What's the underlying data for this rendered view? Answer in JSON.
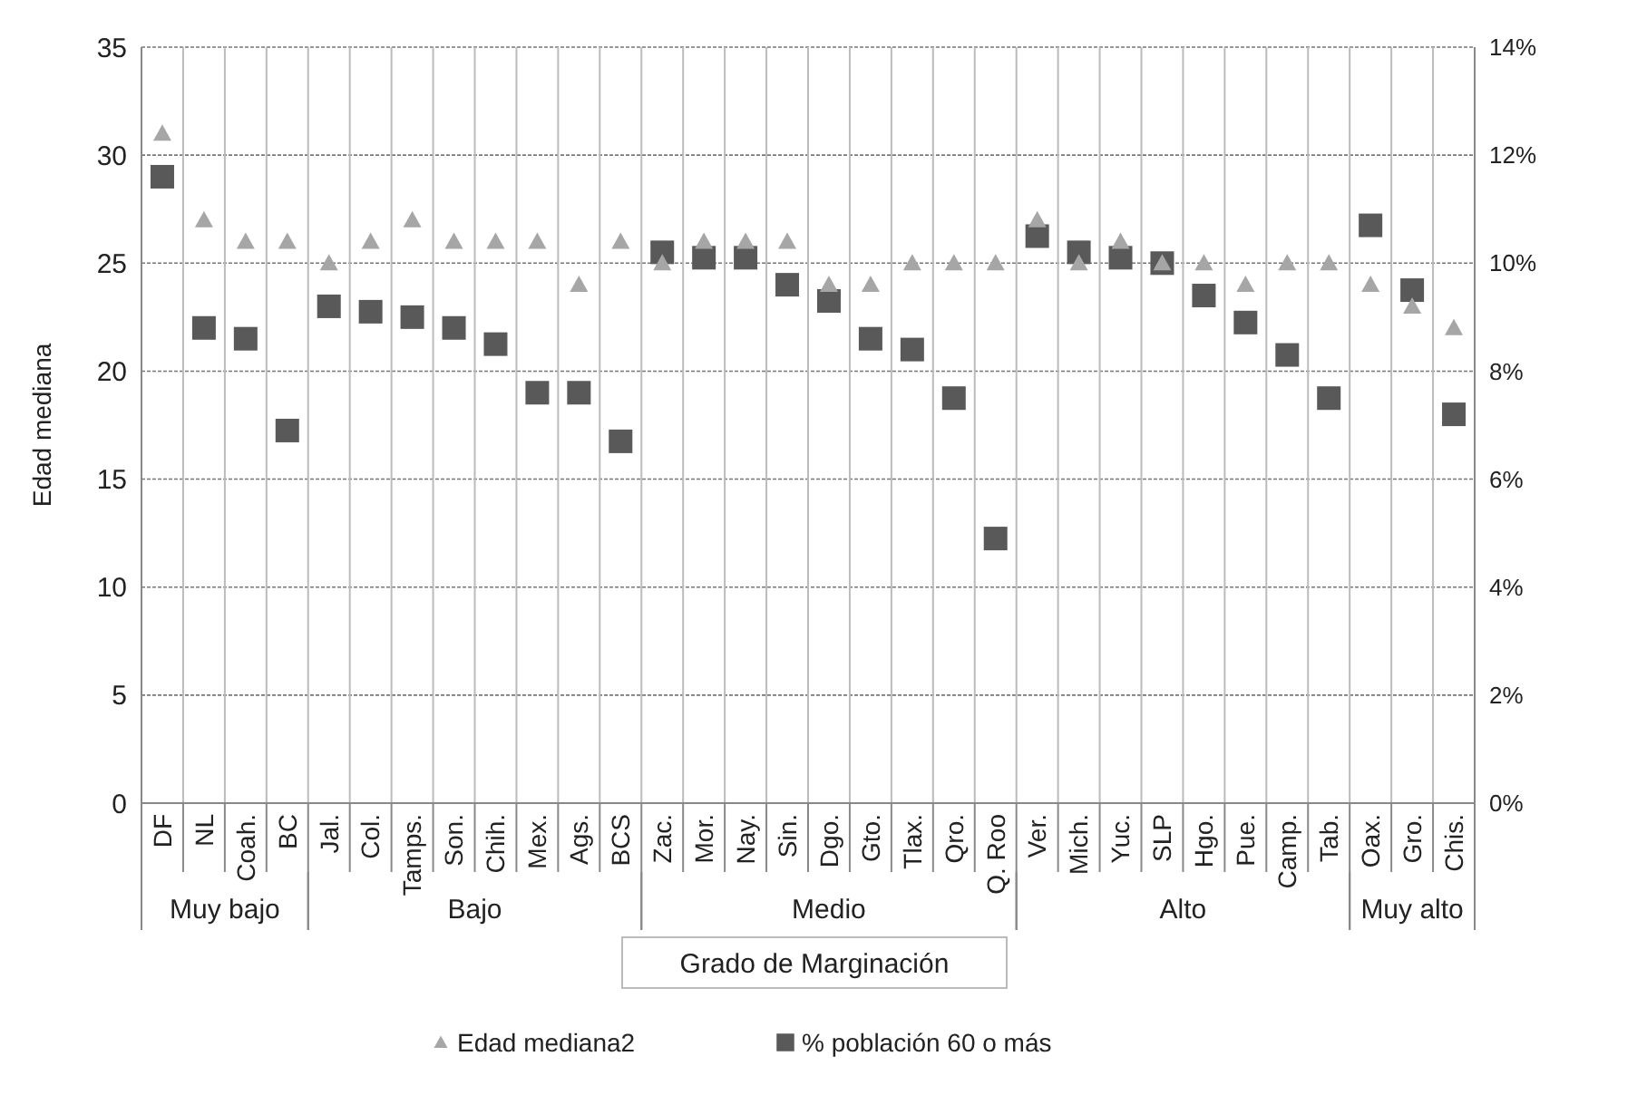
{
  "chart_data": {
    "type": "scatter",
    "xlabel": "Grado de Marginación",
    "ylabel": "Edad  mediana",
    "categories": [
      "DF",
      "NL",
      "Coah.",
      "BC",
      "Jal.",
      "Col.",
      "Tamps.",
      "Son.",
      "Chih.",
      "Mex.",
      "Ags.",
      "BCS",
      "Zac.",
      "Mor.",
      "Nay.",
      "Sin.",
      "Dgo.",
      "Gto.",
      "Tlax.",
      "Qro.",
      "Q. Roo",
      "Ver.",
      "Mich.",
      "Yuc.",
      "SLP",
      "Hgo.",
      "Pue.",
      "Camp.",
      "Tab.",
      "Oax.",
      "Gro.",
      "Chis."
    ],
    "series": [
      {
        "name": "Edad mediana2",
        "color": "#a6a6a6",
        "marker": "triangle",
        "values": [
          31,
          27,
          26,
          26,
          25,
          26,
          27,
          26,
          26,
          26,
          24,
          26,
          25,
          26,
          26,
          26,
          24,
          24,
          25,
          25,
          25,
          27,
          25,
          26,
          25,
          25,
          24,
          25,
          25,
          24,
          23,
          22
        ]
      },
      {
        "name": "% población 60 o más",
        "color": "#595959",
        "marker": "square",
        "axis": "y2",
        "values": [
          11.6,
          8.8,
          8.6,
          6.9,
          9.2,
          9.1,
          9.0,
          8.8,
          8.5,
          7.6,
          7.6,
          6.7,
          10.2,
          10.1,
          10.1,
          9.6,
          9.3,
          8.6,
          8.4,
          7.5,
          4.9,
          10.5,
          10.2,
          10.1,
          10.0,
          9.4,
          8.9,
          8.3,
          7.5,
          10.7,
          9.5,
          7.2
        ]
      }
    ],
    "ylim": [
      0,
      35
    ],
    "yticks": [
      0,
      5,
      10,
      15,
      20,
      25,
      30,
      35
    ],
    "y2lim": [
      0,
      14
    ],
    "y2ticks": [
      {
        "value": 0,
        "label": "0%"
      },
      {
        "value": 2,
        "label": "2%"
      },
      {
        "value": 4,
        "label": "4%"
      },
      {
        "value": 6,
        "label": "6%"
      },
      {
        "value": 8,
        "label": "8%"
      },
      {
        "value": 10,
        "label": "10%"
      },
      {
        "value": 12,
        "label": "12%"
      },
      {
        "value": 14,
        "label": "14%"
      }
    ],
    "annotations": [
      "Muy bajo",
      "Bajo",
      "Medio",
      "Alto",
      "Muy alto"
    ],
    "grid": true,
    "legend": "bottom"
  }
}
